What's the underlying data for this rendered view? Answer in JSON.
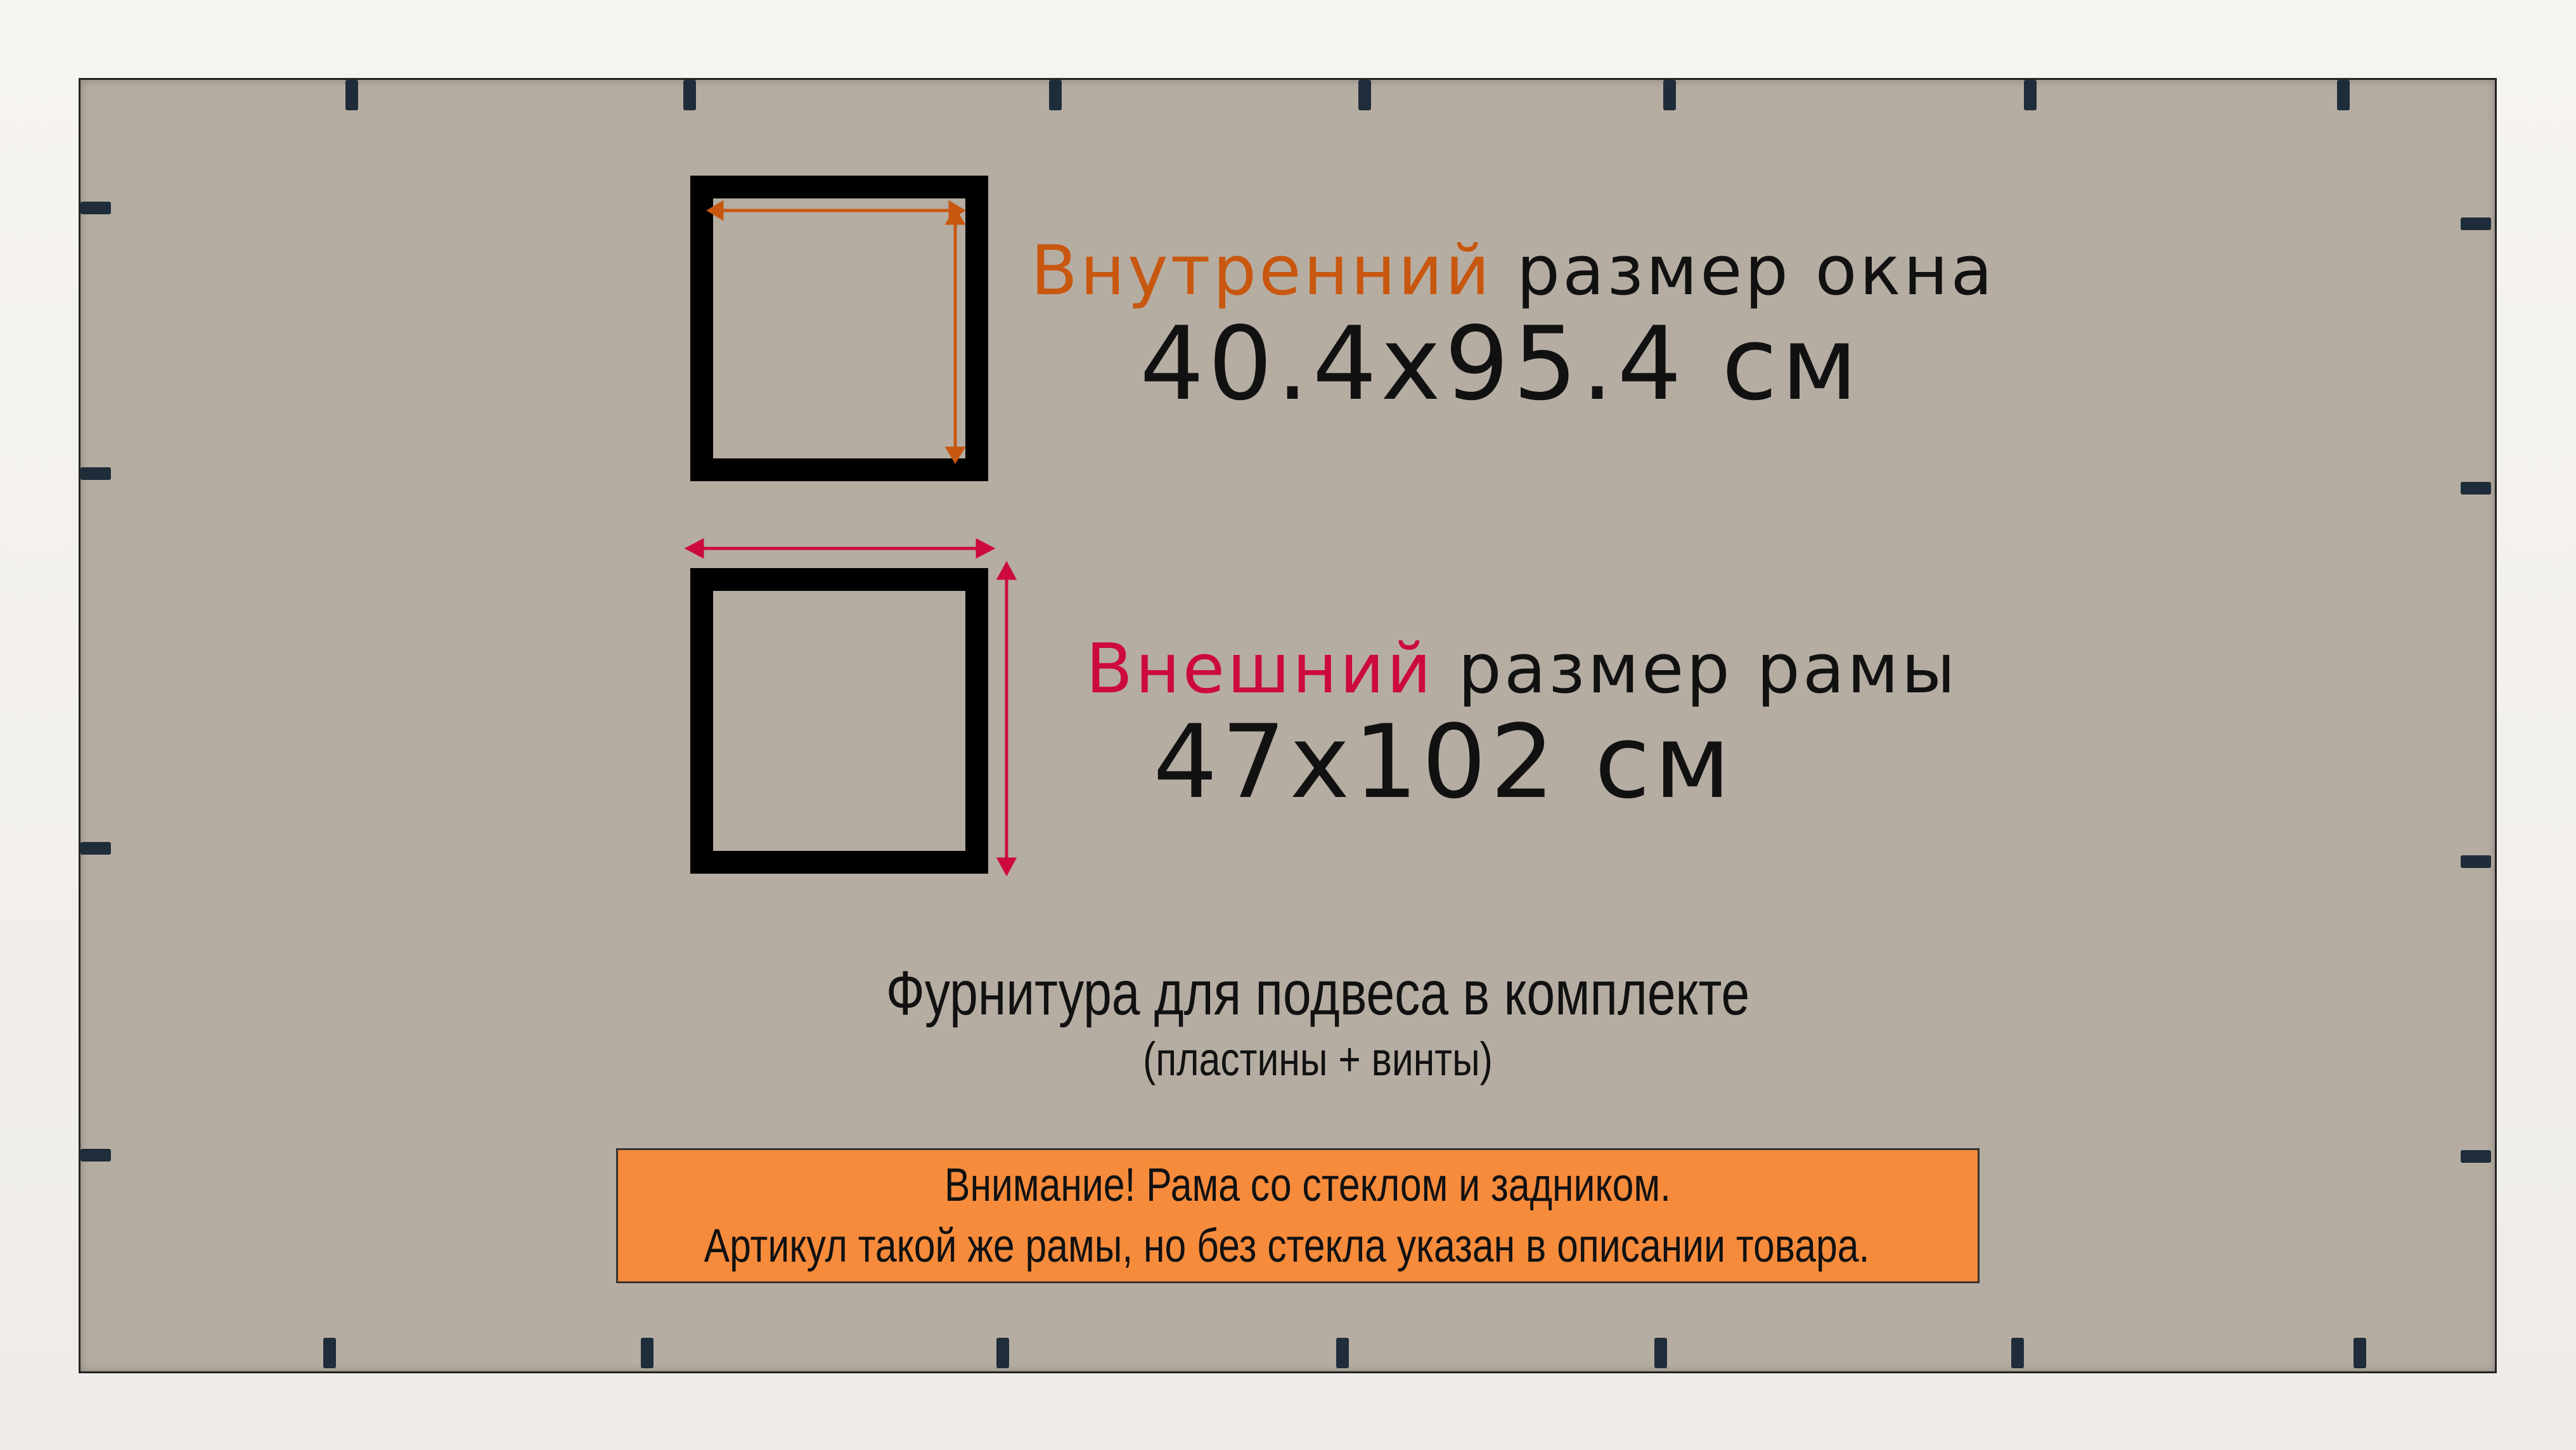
{
  "inner": {
    "highlight": "Внутренний",
    "rest": " размер окна",
    "value": "40.4x95.4 см",
    "color": "#c8570f"
  },
  "outer": {
    "highlight": "Внешний",
    "rest": " размер рамы",
    "value": "47x102 см",
    "color": "#cc0a3c"
  },
  "hardware": {
    "title": "Фурнитура для подвеса в комплекте",
    "subtitle": "(пластины + винты)"
  },
  "warning": {
    "line1": "Внимание! Рама со стеклом и задником.",
    "line2": "Артикул такой же рамы, но без стекла указан в описании товара.",
    "background": "#f68b3c"
  }
}
